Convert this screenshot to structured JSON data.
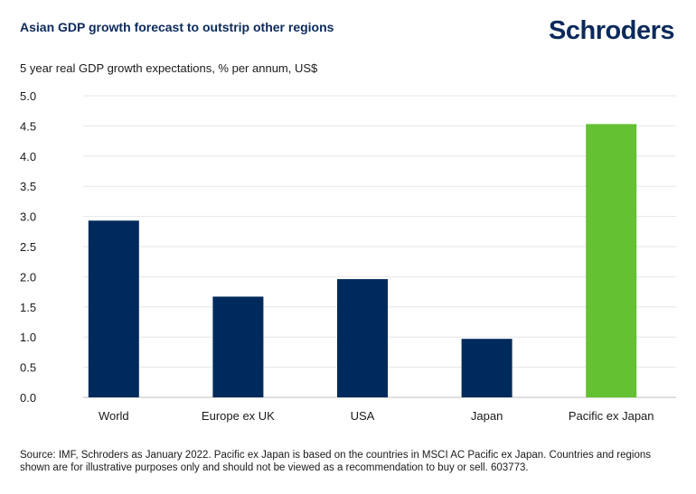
{
  "header": {
    "title": "Asian GDP growth forecast to outstrip other regions",
    "brand": "Schroders"
  },
  "subtitle": "5 year real GDP growth expectations, % per annum, US$",
  "source": "Source: IMF, Schroders as January 2022. Pacific ex Japan is based on the countries in MSCI AC Pacific ex Japan. Countries and regions shown are for illustrative purposes only and should not be viewed as a recommendation to buy or sell. 603773.",
  "colors": {
    "brand_navy": "#0b2a5b",
    "bar_navy": "#002a5c",
    "bar_green": "#63c132",
    "grid": "#e6e6e6"
  },
  "chart_data": {
    "type": "bar",
    "title": "Asian GDP growth forecast to outstrip other regions",
    "ylabel": "5 year real GDP growth expectations, % per annum, US$",
    "categories": [
      "World",
      "Europe ex UK",
      "USA",
      "Japan",
      "Pacific ex Japan"
    ],
    "values": [
      2.93,
      1.67,
      1.96,
      0.97,
      4.53
    ],
    "bar_colors": [
      "#002a5c",
      "#002a5c",
      "#002a5c",
      "#002a5c",
      "#63c132"
    ],
    "yticks": [
      "0.0",
      "0.5",
      "1.0",
      "1.5",
      "2.0",
      "2.5",
      "3.0",
      "3.5",
      "4.0",
      "4.5",
      "5.0"
    ],
    "ylim": [
      0,
      5
    ],
    "grid": true,
    "legend": "none"
  }
}
